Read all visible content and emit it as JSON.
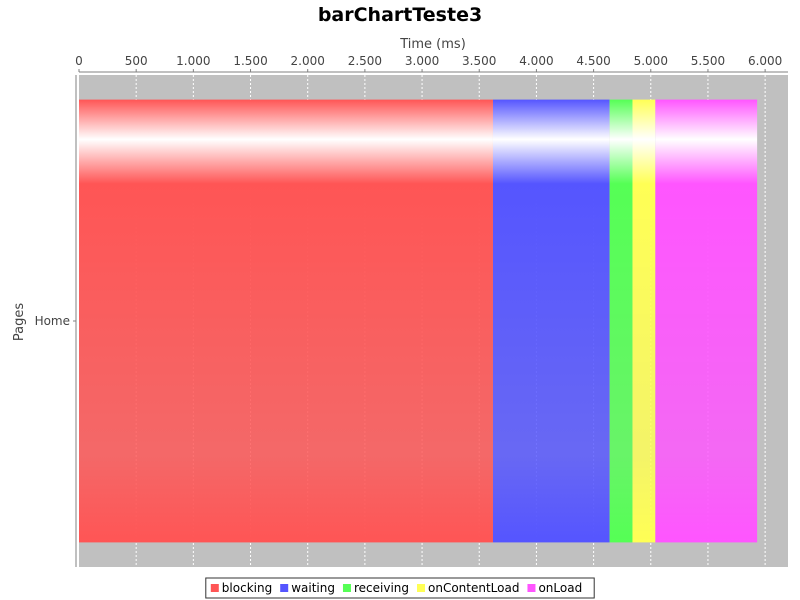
{
  "chart_data": {
    "type": "bar",
    "orientation": "horizontal",
    "stacked": true,
    "title": "barChartTeste3",
    "xlabel": "Time (ms)",
    "ylabel": "Pages",
    "x_axis_position": "top",
    "xlim": [
      0,
      6200
    ],
    "x_ticks": [
      0,
      500,
      1000,
      1500,
      2000,
      2500,
      3000,
      3500,
      4000,
      4500,
      5000,
      5500,
      6000
    ],
    "x_tick_labels": [
      "0",
      "500",
      "1.000",
      "1.500",
      "2.000",
      "2.500",
      "3.000",
      "3.500",
      "4.000",
      "4.500",
      "5.000",
      "5.500",
      "6.000"
    ],
    "categories": [
      "Home"
    ],
    "grid": true,
    "legend_position": "bottom",
    "series": [
      {
        "name": "blocking",
        "values": [
          3620
        ],
        "color": "#ff5555"
      },
      {
        "name": "waiting",
        "values": [
          1020
        ],
        "color": "#5555ff"
      },
      {
        "name": "receiving",
        "values": [
          200
        ],
        "color": "#55ff55"
      },
      {
        "name": "onContentLoad",
        "values": [
          200
        ],
        "color": "#ffff55"
      },
      {
        "name": "onLoad",
        "values": [
          890
        ],
        "color": "#ff55ff"
      }
    ]
  }
}
